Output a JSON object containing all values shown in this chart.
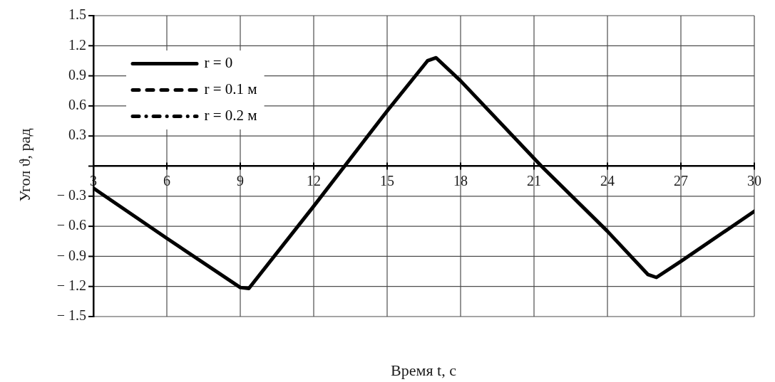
{
  "chart_data": {
    "type": "line",
    "xlabel": "Время t, с",
    "ylabel": "Угол ϑ, рад",
    "x": [
      3,
      6,
      9,
      9.35,
      12,
      15,
      16.65,
      17,
      18,
      21.3,
      24,
      25.65,
      26,
      27,
      30
    ],
    "series": [
      {
        "name": "r = 0",
        "color": "#000000",
        "line_style": "solid",
        "values": [
          -0.22,
          -0.72,
          -1.21,
          -1.22,
          -0.4,
          0.55,
          1.05,
          1.08,
          0.85,
          0,
          -0.65,
          -1.08,
          -1.11,
          -0.95,
          -0.45
        ]
      },
      {
        "name": "r = 0.1 м",
        "color": "#000000",
        "line_style": "dashed",
        "values": [
          null,
          null,
          null,
          null,
          null,
          null,
          null,
          null,
          null,
          null,
          null,
          null,
          null,
          null,
          null
        ]
      },
      {
        "name": "r = 0.2 м",
        "color": "#000000",
        "line_style": "dashdot",
        "values": [
          null,
          null,
          null,
          null,
          null,
          null,
          null,
          null,
          null,
          null,
          null,
          null,
          null,
          null,
          null
        ]
      }
    ],
    "xlim": [
      3,
      30
    ],
    "xticks": [
      3,
      6,
      9,
      12,
      15,
      18,
      21,
      24,
      27,
      30
    ],
    "ylim": [
      -1.5,
      1.5
    ],
    "yticks": [
      {
        "value": -1.5,
        "label": "− 1.5"
      },
      {
        "value": -1.2,
        "label": "− 1.2"
      },
      {
        "value": -0.9,
        "label": "− 0.9"
      },
      {
        "value": -0.6,
        "label": "− 0.6"
      },
      {
        "value": -0.3,
        "label": "− 0.3"
      },
      {
        "value": 0,
        "label": null
      },
      0.3,
      0.6,
      0.9,
      1.2,
      1.5
    ],
    "grid": true,
    "legend": "top left"
  }
}
